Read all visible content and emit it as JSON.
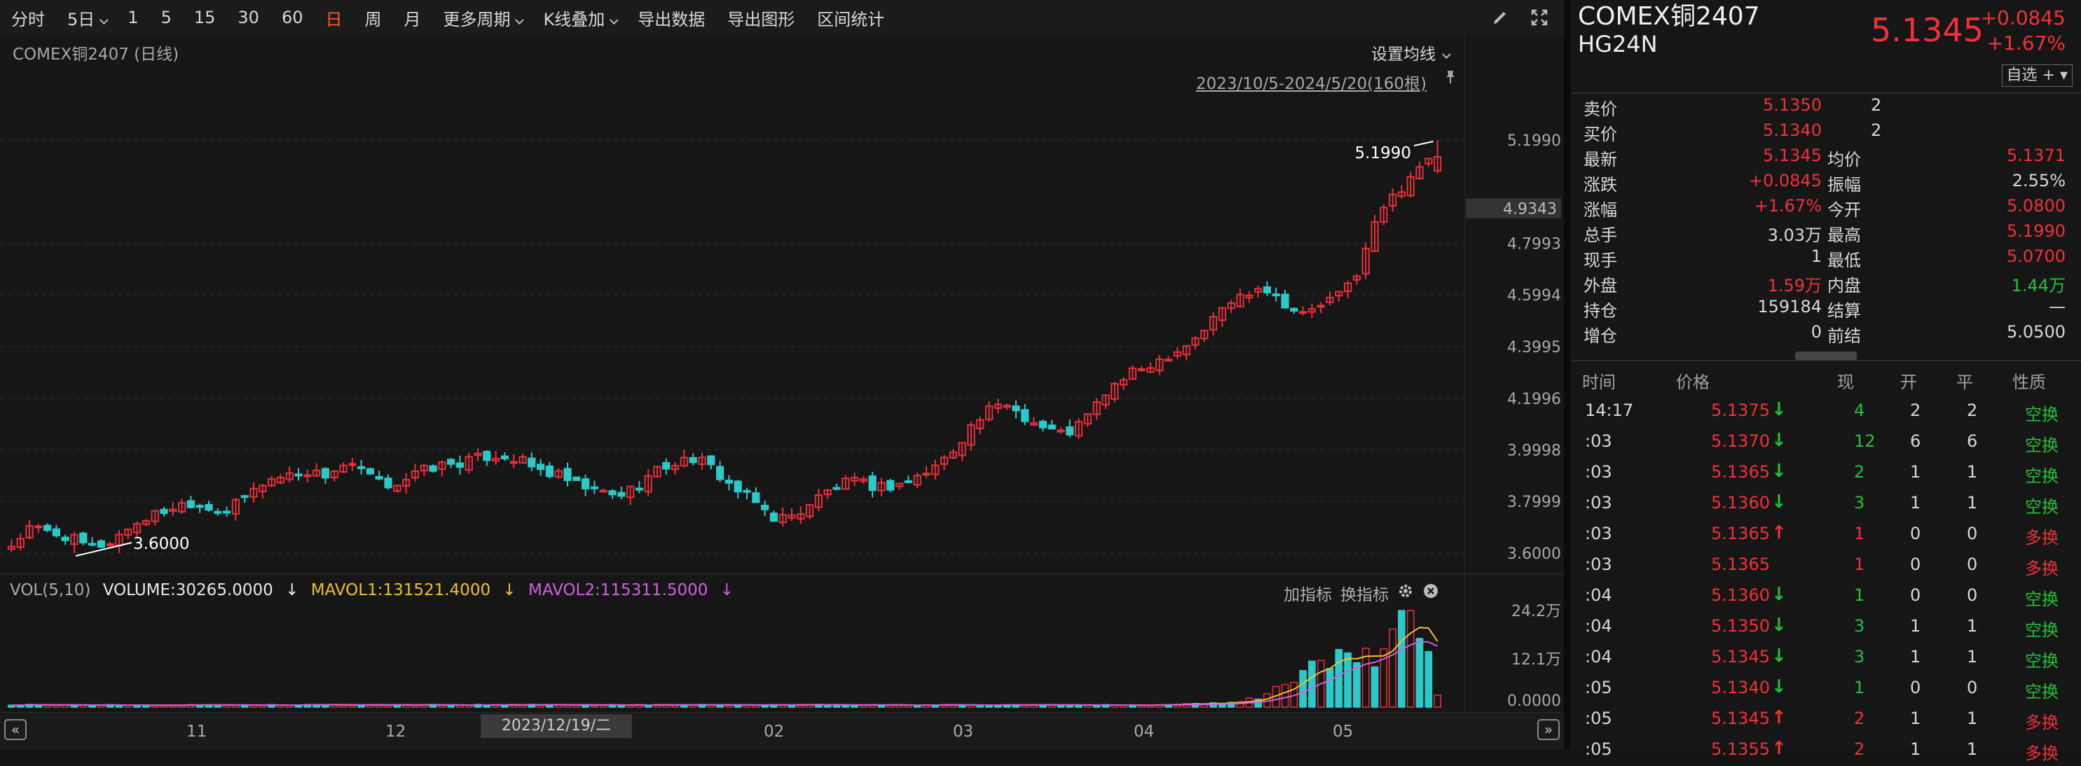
{
  "toolbar": {
    "items": [
      "分时",
      "5日",
      "1",
      "5",
      "15",
      "30",
      "60",
      "日",
      "周",
      "月",
      "更多周期",
      "K线叠加",
      "导出数据",
      "导出图形",
      "区间统计"
    ],
    "active": "日"
  },
  "chart": {
    "title": "COMEX铜2407 (日线)",
    "ma_setting": "设置均线",
    "range_label": "2023/10/5-2024/5/20(160根)",
    "price_axis": [
      "5.1990",
      "4.7993",
      "4.5994",
      "4.3995",
      "4.1996",
      "3.9998",
      "3.7999",
      "3.6000"
    ],
    "crosshair_price": "4.9343",
    "high_label": "5.1990",
    "low_label": "3.6000",
    "vol_axis": [
      "24.2万",
      "12.1万",
      "0.0000"
    ],
    "months": [
      "11",
      "12",
      "02",
      "03",
      "04",
      "05"
    ],
    "cursor_date": "2023/12/19/二",
    "nav_left": "«",
    "nav_right": "»"
  },
  "vol_legend": {
    "name": "VOL(5,10)",
    "volume": "VOLUME:30265.0000",
    "mavol1": "MAVOL1:131521.4000",
    "mavol2": "MAVOL2:115311.5000",
    "arrow": "↓",
    "add_indicator": "加指标",
    "switch_indicator": "换指标"
  },
  "colors": {
    "up": "#e8303a",
    "down": "#2ec8c8",
    "mavol1": "#f0c030",
    "mavol2": "#d060e0"
  },
  "chart_data": {
    "type": "candlestick",
    "range": "2023/10/5-2024/5/20",
    "bars": 160,
    "ylim": [
      3.6,
      5.199
    ],
    "high": 5.199,
    "low": 3.6,
    "close_trend": [
      3.63,
      3.7,
      3.68,
      3.66,
      3.62,
      3.64,
      3.7,
      3.74,
      3.77,
      3.8,
      3.78,
      3.76,
      3.82,
      3.88,
      3.9,
      3.92,
      3.9,
      3.94,
      3.92,
      3.86,
      3.88,
      3.92,
      3.94,
      3.95,
      3.97,
      3.98,
      3.96,
      3.92,
      3.9,
      3.86,
      3.84,
      3.82,
      3.86,
      3.92,
      3.95,
      3.97,
      3.92,
      3.85,
      3.8,
      3.74,
      3.74,
      3.8,
      3.85,
      3.88,
      3.86,
      3.86,
      3.88,
      3.92,
      3.98,
      4.08,
      4.15,
      4.18,
      4.12,
      4.08,
      4.06,
      4.12,
      4.22,
      4.28,
      4.32,
      4.36,
      4.4,
      4.46,
      4.55,
      4.6,
      4.64,
      4.58,
      4.52,
      4.56,
      4.6,
      4.7,
      4.92,
      5.0,
      5.1,
      5.13
    ],
    "volume_wan": [
      0.5,
      0.5,
      0.5,
      0.5,
      0.5,
      0.5,
      0.6,
      0.6,
      0.6,
      0.6,
      0.7,
      0.7,
      0.8,
      0.8,
      0.9,
      0.9,
      1.0,
      1.2,
      1.4,
      1.8,
      2.2,
      2.8,
      3.5,
      4.5,
      5.5,
      6.5,
      8.0,
      9.5,
      11.0,
      12.5,
      13.0,
      12.0,
      11.5,
      12.5,
      14.0,
      16.0,
      22.0,
      24.2,
      21.0,
      18.0,
      12.0,
      3.0
    ],
    "mavol1_last": 131521.4,
    "mavol2_last": 115311.5
  },
  "quote": {
    "name": "COMEX铜2407",
    "code": "HG24N",
    "price": "5.1345",
    "change": "+0.0845",
    "change_pct": "+1.67%",
    "favorite": "自选 +",
    "rows": [
      {
        "l": "卖价",
        "v": "5.1350",
        "c": "red",
        "x": "2"
      },
      {
        "l": "买价",
        "v": "5.1340",
        "c": "red",
        "x": "2"
      },
      {
        "l": "最新",
        "v": "5.1345",
        "c": "red",
        "l2": "均价",
        "v2": "5.1371",
        "c2": "red"
      },
      {
        "l": "涨跌",
        "v": "+0.0845",
        "c": "red",
        "l2": "振幅",
        "v2": "2.55%",
        "c2": "white"
      },
      {
        "l": "涨幅",
        "v": "+1.67%",
        "c": "red",
        "l2": "今开",
        "v2": "5.0800",
        "c2": "red"
      },
      {
        "l": "总手",
        "v": "3.03万",
        "c": "white",
        "l2": "最高",
        "v2": "5.1990",
        "c2": "red"
      },
      {
        "l": "现手",
        "v": "1",
        "c": "white",
        "l2": "最低",
        "v2": "5.0700",
        "c2": "red"
      },
      {
        "l": "外盘",
        "v": "1.59万",
        "c": "red",
        "l2": "内盘",
        "v2": "1.44万",
        "c2": "green"
      },
      {
        "l": "持仓",
        "v": "159184",
        "c": "white",
        "l2": "结算",
        "v2": "—",
        "c2": "white"
      },
      {
        "l": "增仓",
        "v": "0",
        "c": "white",
        "l2": "前结",
        "v2": "5.0500",
        "c2": "white"
      }
    ]
  },
  "trades": {
    "headers": [
      "时间",
      "价格",
      "现",
      "开",
      "平",
      "性质"
    ],
    "rows": [
      {
        "t": "14:17",
        "p": "5.1375",
        "d": "down",
        "n": "4",
        "o": "2",
        "c": "2",
        "k": "空换"
      },
      {
        "t": ":03",
        "p": "5.1370",
        "d": "down",
        "n": "12",
        "o": "6",
        "c": "6",
        "k": "空换"
      },
      {
        "t": ":03",
        "p": "5.1365",
        "d": "down",
        "n": "2",
        "o": "1",
        "c": "1",
        "k": "空换"
      },
      {
        "t": ":03",
        "p": "5.1360",
        "d": "down",
        "n": "3",
        "o": "1",
        "c": "1",
        "k": "空换"
      },
      {
        "t": ":03",
        "p": "5.1365",
        "d": "up",
        "n": "1",
        "o": "0",
        "c": "0",
        "k": "多换"
      },
      {
        "t": ":03",
        "p": "5.1365",
        "d": "none",
        "n": "1",
        "o": "0",
        "c": "0",
        "k": "多换"
      },
      {
        "t": ":04",
        "p": "5.1360",
        "d": "down",
        "n": "1",
        "o": "0",
        "c": "0",
        "k": "空换"
      },
      {
        "t": ":04",
        "p": "5.1350",
        "d": "down",
        "n": "3",
        "o": "1",
        "c": "1",
        "k": "空换"
      },
      {
        "t": ":04",
        "p": "5.1345",
        "d": "down",
        "n": "3",
        "o": "1",
        "c": "1",
        "k": "空换"
      },
      {
        "t": ":05",
        "p": "5.1340",
        "d": "down",
        "n": "1",
        "o": "0",
        "c": "0",
        "k": "空换"
      },
      {
        "t": ":05",
        "p": "5.1345",
        "d": "up",
        "n": "2",
        "o": "1",
        "c": "1",
        "k": "多换"
      },
      {
        "t": ":05",
        "p": "5.1355",
        "d": "up",
        "n": "2",
        "o": "1",
        "c": "1",
        "k": "多换"
      }
    ]
  }
}
